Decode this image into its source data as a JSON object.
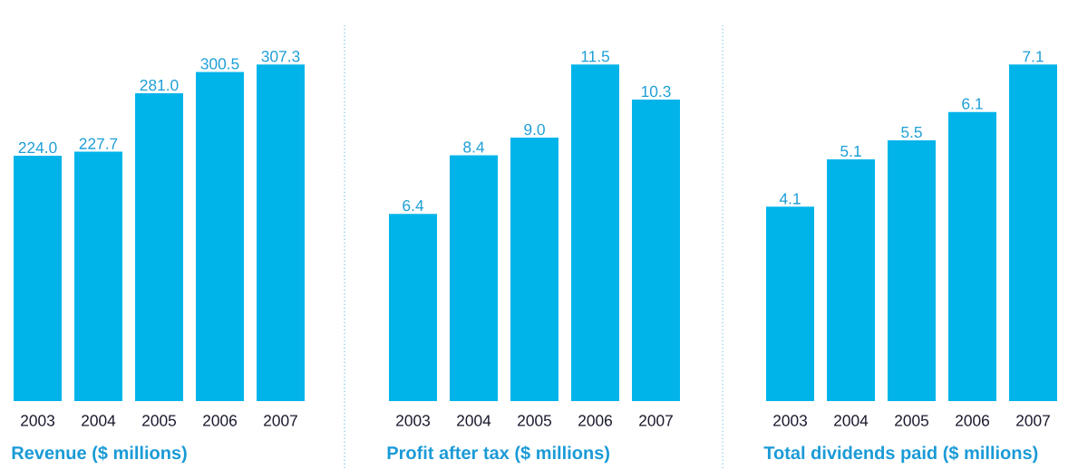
{
  "chart_data": [
    {
      "type": "bar",
      "title": "Revenue ($ millions)",
      "categories": [
        "2003",
        "2004",
        "2005",
        "2006",
        "2007"
      ],
      "values": [
        224.0,
        227.7,
        281.0,
        300.5,
        307.3
      ],
      "value_labels": [
        "224.0",
        "227.7",
        "281.0",
        "300.5",
        "307.3"
      ],
      "color": "#00b4ea"
    },
    {
      "type": "bar",
      "title": "Profit after tax ($ millions)",
      "categories": [
        "2003",
        "2004",
        "2005",
        "2006",
        "2007"
      ],
      "values": [
        6.4,
        8.4,
        9.0,
        11.5,
        10.3
      ],
      "value_labels": [
        "6.4",
        "8.4",
        "9.0",
        "11.5",
        "10.3"
      ],
      "color": "#00b4ea"
    },
    {
      "type": "bar",
      "title": "Total dividends paid ($ millions)",
      "categories": [
        "2003",
        "2004",
        "2005",
        "2006",
        "2007"
      ],
      "values": [
        4.1,
        5.1,
        5.5,
        6.1,
        7.1
      ],
      "value_labels": [
        "4.1",
        "5.1",
        "5.5",
        "6.1",
        "7.1"
      ],
      "color": "#00b4ea"
    }
  ]
}
